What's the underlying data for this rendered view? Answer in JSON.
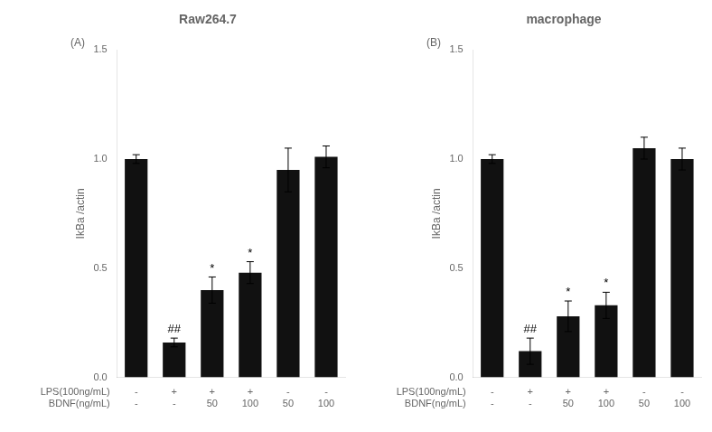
{
  "chart_data": [
    {
      "type": "bar",
      "title": "Raw264.7",
      "subtitle": "(A)",
      "categories": [
        [
          "-",
          "-"
        ],
        [
          "+",
          "-"
        ],
        [
          "+",
          "50"
        ],
        [
          "+",
          "100"
        ],
        [
          "-",
          "50"
        ],
        [
          "-",
          "100"
        ]
      ],
      "category_rows": [
        "LPS(100ng/mL)",
        "BDNF(ng/mL)"
      ],
      "values": [
        1.0,
        0.16,
        0.4,
        0.48,
        0.95,
        1.01
      ],
      "errors": [
        0.02,
        0.02,
        0.06,
        0.05,
        0.1,
        0.05
      ],
      "annotations": [
        null,
        "##",
        "*",
        "*",
        null,
        null
      ],
      "color": "#111111",
      "ylabel": "IkBa /actin",
      "ylim": [
        0,
        1.5
      ],
      "yticks": [
        {
          "value": 0,
          "label": "0.0"
        },
        0.5,
        {
          "value": 1,
          "label": "1.0"
        },
        1.5
      ],
      "grid": false
    },
    {
      "type": "bar",
      "title": "macrophage",
      "subtitle": "(B)",
      "categories": [
        [
          "-",
          "-"
        ],
        [
          "+",
          "-"
        ],
        [
          "+",
          "50"
        ],
        [
          "+",
          "100"
        ],
        [
          "-",
          "50"
        ],
        [
          "-",
          "100"
        ]
      ],
      "category_rows": [
        "LPS(100ng/mL)",
        "BDNF(ng/mL)"
      ],
      "values": [
        1.0,
        0.12,
        0.28,
        0.33,
        1.05,
        1.0
      ],
      "errors": [
        0.02,
        0.06,
        0.07,
        0.06,
        0.05,
        0.05
      ],
      "annotations": [
        null,
        "##",
        "*",
        "*",
        null,
        null
      ],
      "color": "#111111",
      "ylabel": "IkBa /actin",
      "ylim": [
        0,
        1.5
      ],
      "yticks": [
        {
          "value": 0,
          "label": "0.0"
        },
        0.5,
        {
          "value": 1,
          "label": "1.0"
        },
        1.5
      ],
      "grid": false
    }
  ]
}
